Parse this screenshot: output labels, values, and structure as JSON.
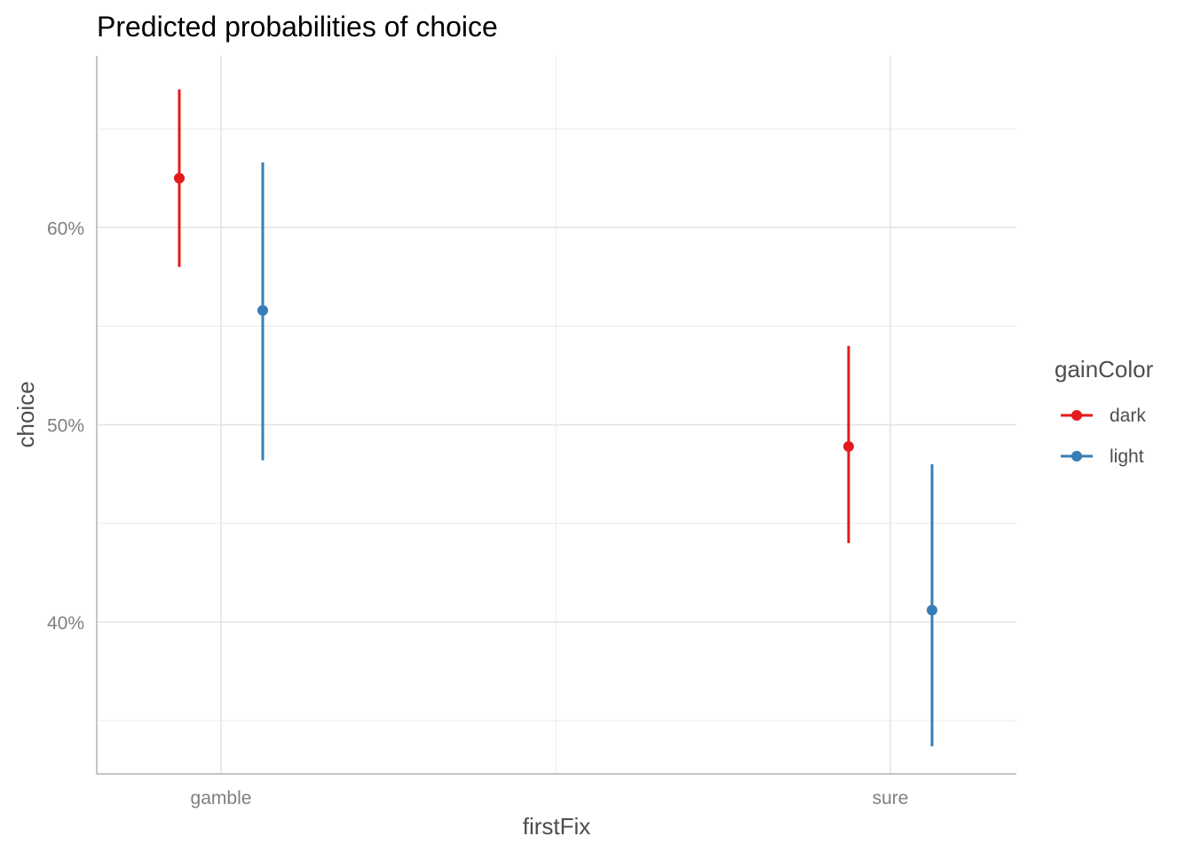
{
  "chart_data": {
    "type": "pointrange",
    "title": "Predicted probabilities of choice",
    "xlabel": "firstFix",
    "ylabel": "choice",
    "categories": [
      "gamble",
      "sure"
    ],
    "ylim": [
      0.323,
      0.687
    ],
    "yticks": [
      0.4,
      0.5,
      0.6
    ],
    "ytick_labels": [
      "40%",
      "50%",
      "60%"
    ],
    "yminor": [
      0.35,
      0.45,
      0.55,
      0.65
    ],
    "grid": true,
    "legend": {
      "title": "gainColor",
      "position": "right"
    },
    "series": [
      {
        "name": "dark",
        "color": "#E41A1C",
        "estimates": [
          0.625,
          0.489
        ],
        "lower": [
          0.58,
          0.44
        ],
        "upper": [
          0.67,
          0.54
        ]
      },
      {
        "name": "light",
        "color": "#377EB8",
        "estimates": [
          0.558,
          0.406
        ],
        "lower": [
          0.482,
          0.337
        ],
        "upper": [
          0.633,
          0.48
        ]
      }
    ]
  }
}
